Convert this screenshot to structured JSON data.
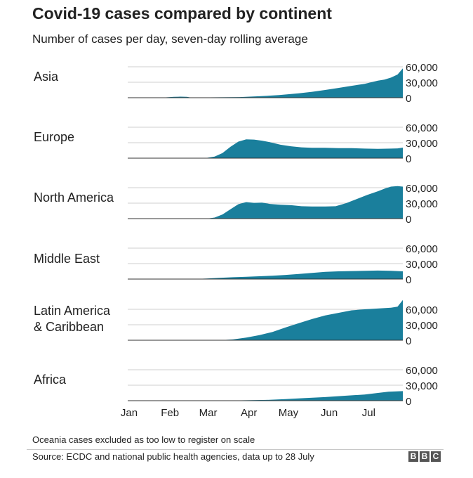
{
  "header": {
    "title": "Covid-19 cases compared by continent",
    "subtitle": "Number of cases per day, seven-day rolling average"
  },
  "colors": {
    "area_fill": "#1a7f9c",
    "gridline": "#cfcfcf",
    "axis": "#333333"
  },
  "chart_data": {
    "type": "area",
    "title": "Covid-19 cases compared by continent",
    "subtitle": "Number of cases per day, seven-day rolling average",
    "xlabel": "",
    "ylabel": "Number of cases per day",
    "x_ticks": [
      "Jan",
      "Feb",
      "Mar",
      "Apr",
      "May",
      "Jun",
      "Jul"
    ],
    "y_ticks": [
      0,
      30000,
      60000
    ],
    "y_tick_labels": [
      "0",
      "30,000",
      "60,000"
    ],
    "ylim": [
      0,
      60000
    ],
    "x_unit": "days since 1 Jan 2020",
    "xlim": [
      0,
      209
    ],
    "series": [
      {
        "name": "Asia",
        "label_lines": [
          "Asia"
        ],
        "points": [
          [
            0,
            0
          ],
          [
            20,
            0
          ],
          [
            28,
            600
          ],
          [
            35,
            1600
          ],
          [
            40,
            2100
          ],
          [
            45,
            1700
          ],
          [
            48,
            300
          ],
          [
            55,
            500
          ],
          [
            70,
            800
          ],
          [
            85,
            1200
          ],
          [
            100,
            2800
          ],
          [
            115,
            5000
          ],
          [
            130,
            8500
          ],
          [
            140,
            11500
          ],
          [
            150,
            15000
          ],
          [
            160,
            19000
          ],
          [
            170,
            23000
          ],
          [
            180,
            27000
          ],
          [
            190,
            33000
          ],
          [
            195,
            35000
          ],
          [
            200,
            39000
          ],
          [
            205,
            45000
          ],
          [
            209,
            57000
          ]
        ]
      },
      {
        "name": "Europe",
        "label_lines": [
          "Europe"
        ],
        "points": [
          [
            0,
            0
          ],
          [
            45,
            0
          ],
          [
            60,
            500
          ],
          [
            66,
            3000
          ],
          [
            72,
            10000
          ],
          [
            78,
            22000
          ],
          [
            84,
            32000
          ],
          [
            90,
            36500
          ],
          [
            96,
            36000
          ],
          [
            102,
            34000
          ],
          [
            108,
            31000
          ],
          [
            116,
            26000
          ],
          [
            124,
            23000
          ],
          [
            132,
            21000
          ],
          [
            140,
            20000
          ],
          [
            150,
            20000
          ],
          [
            160,
            19500
          ],
          [
            170,
            19500
          ],
          [
            180,
            18500
          ],
          [
            190,
            18000
          ],
          [
            200,
            18500
          ],
          [
            205,
            19000
          ],
          [
            209,
            20500
          ]
        ]
      },
      {
        "name": "North America",
        "label_lines": [
          "North America"
        ],
        "points": [
          [
            0,
            0
          ],
          [
            60,
            0
          ],
          [
            66,
            2000
          ],
          [
            72,
            8000
          ],
          [
            78,
            18000
          ],
          [
            84,
            28000
          ],
          [
            90,
            32000
          ],
          [
            96,
            30500
          ],
          [
            102,
            31000
          ],
          [
            108,
            28500
          ],
          [
            116,
            27000
          ],
          [
            124,
            26000
          ],
          [
            132,
            24000
          ],
          [
            140,
            23500
          ],
          [
            150,
            23500
          ],
          [
            158,
            24000
          ],
          [
            166,
            30000
          ],
          [
            174,
            38000
          ],
          [
            182,
            46000
          ],
          [
            190,
            53000
          ],
          [
            196,
            59000
          ],
          [
            200,
            62000
          ],
          [
            205,
            63000
          ],
          [
            209,
            62000
          ]
        ]
      },
      {
        "name": "Middle East",
        "label_lines": [
          "Middle East"
        ],
        "points": [
          [
            0,
            0
          ],
          [
            50,
            0
          ],
          [
            60,
            1000
          ],
          [
            70,
            2500
          ],
          [
            80,
            3500
          ],
          [
            90,
            4500
          ],
          [
            100,
            5500
          ],
          [
            110,
            6500
          ],
          [
            120,
            8000
          ],
          [
            130,
            10000
          ],
          [
            140,
            12000
          ],
          [
            150,
            14000
          ],
          [
            160,
            15000
          ],
          [
            170,
            15500
          ],
          [
            180,
            16000
          ],
          [
            190,
            16500
          ],
          [
            200,
            16000
          ],
          [
            209,
            15000
          ]
        ]
      },
      {
        "name": "Latin America & Caribbean",
        "label_lines": [
          "Latin America",
          "& Caribbean"
        ],
        "points": [
          [
            0,
            0
          ],
          [
            70,
            0
          ],
          [
            80,
            1500
          ],
          [
            90,
            5000
          ],
          [
            100,
            10000
          ],
          [
            110,
            16000
          ],
          [
            120,
            25000
          ],
          [
            130,
            33000
          ],
          [
            140,
            41000
          ],
          [
            150,
            48000
          ],
          [
            160,
            53000
          ],
          [
            170,
            58000
          ],
          [
            180,
            60000
          ],
          [
            190,
            61500
          ],
          [
            200,
            63000
          ],
          [
            205,
            65000
          ],
          [
            209,
            78000
          ]
        ]
      },
      {
        "name": "Africa",
        "label_lines": [
          "Africa"
        ],
        "points": [
          [
            0,
            0
          ],
          [
            70,
            0
          ],
          [
            90,
            800
          ],
          [
            105,
            1500
          ],
          [
            120,
            3000
          ],
          [
            135,
            5000
          ],
          [
            150,
            7000
          ],
          [
            165,
            9500
          ],
          [
            180,
            12000
          ],
          [
            190,
            15000
          ],
          [
            198,
            17500
          ],
          [
            209,
            18500
          ]
        ]
      }
    ]
  },
  "footnote": "Oceania cases excluded as too low to register on scale",
  "source": "Source: ECDC and national public health agencies, data up to 28 July",
  "logo": [
    "B",
    "B",
    "C"
  ]
}
